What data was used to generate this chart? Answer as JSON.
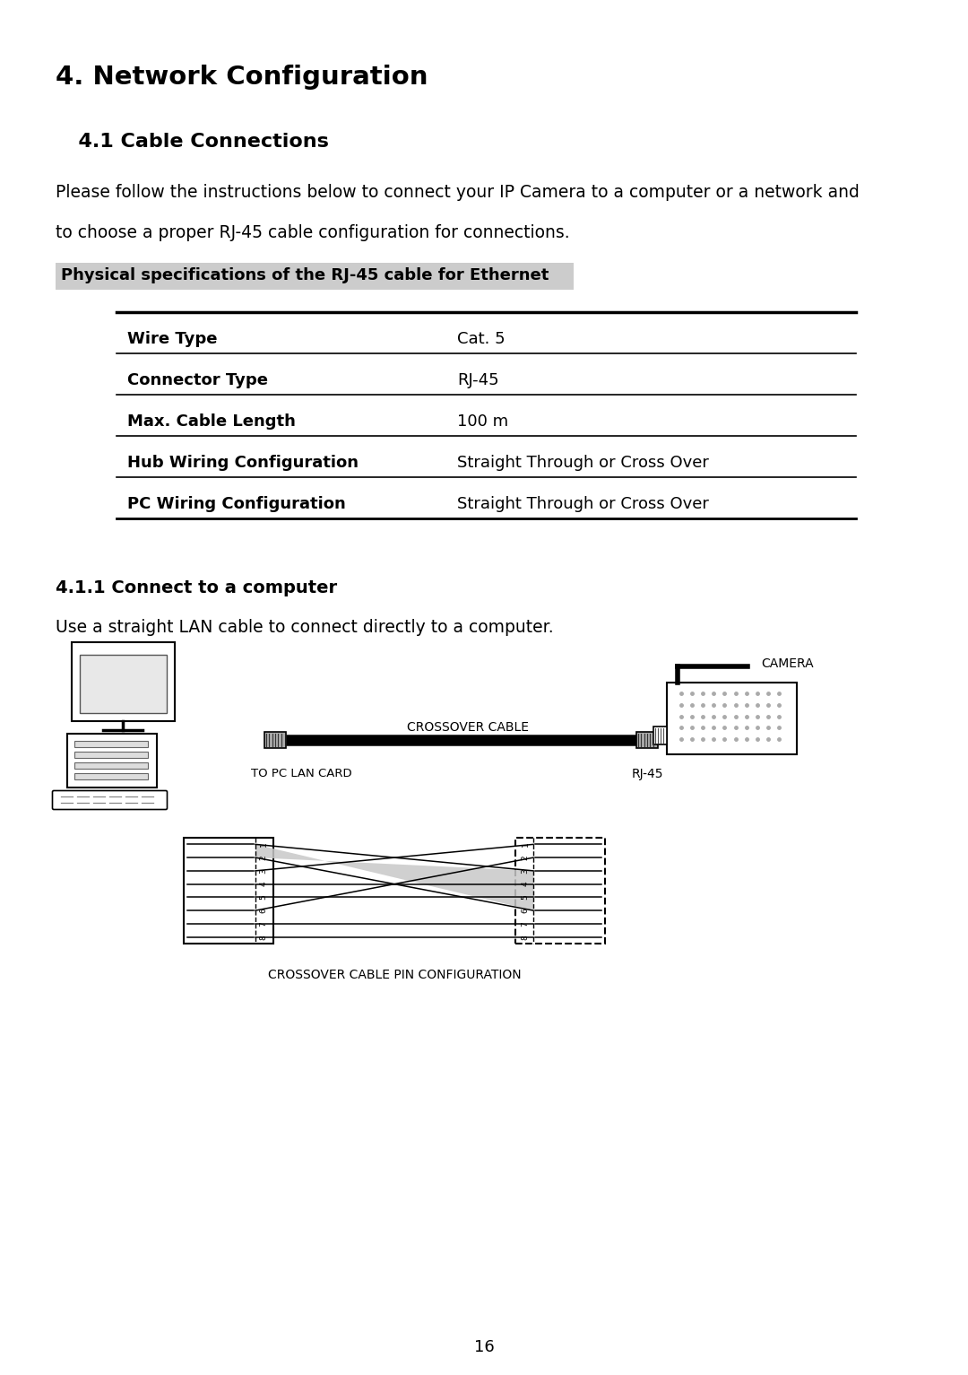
{
  "title": "4. Network Configuration",
  "subtitle": "  4.1 Cable Connections",
  "body_text1": "Please follow the instructions below to connect your IP Camera to a computer or a network and",
  "body_text2": "to choose a proper RJ-45 cable configuration for connections.",
  "spec_heading": "Physical specifications of the RJ-45 cable for Ethernet",
  "table_rows": [
    [
      "Wire Type",
      "Cat. 5"
    ],
    [
      "Connector Type",
      "RJ-45"
    ],
    [
      "Max. Cable Length",
      "100 m"
    ],
    [
      "Hub Wiring Configuration",
      "Straight Through or Cross Over"
    ],
    [
      "PC Wiring Configuration",
      "Straight Through or Cross Over"
    ]
  ],
  "section_title": "4.1.1 Connect to a computer",
  "connect_text": "Use a straight LAN cable to connect directly to a computer.",
  "label_crossover": "CROSSOVER CABLE",
  "label_to_pc": "TO PC LAN CARD",
  "label_rj45": "RJ-45",
  "label_camera": "CAMERA",
  "label_pin_config": "CROSSOVER CABLE PIN CONFIGURATION",
  "page_number": "16",
  "bg_color": "#ffffff",
  "text_color": "#000000",
  "spec_bg": "#cccccc",
  "line_color": "#000000"
}
